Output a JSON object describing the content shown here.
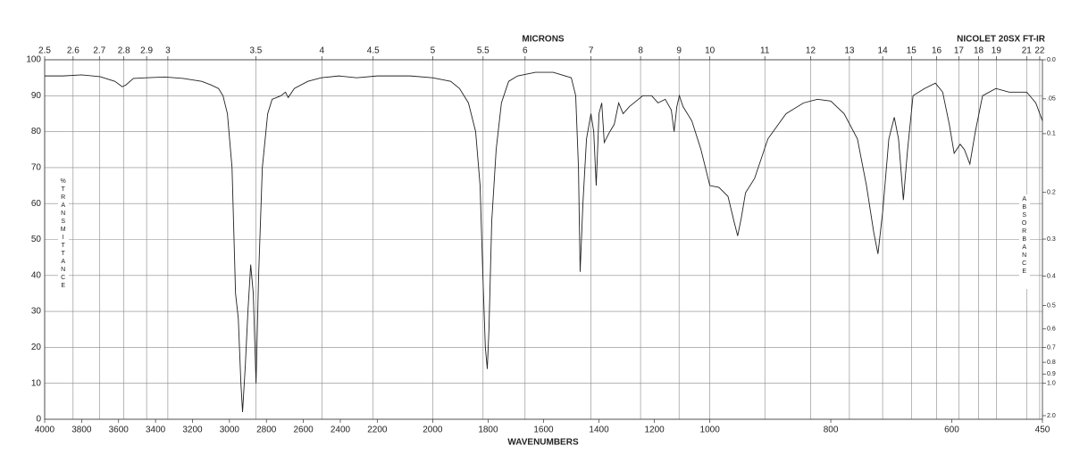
{
  "chart_data": {
    "type": "line",
    "title": "NICOLET 20SX FT-IR",
    "x2label": "MICRONS",
    "xlabel": "WAVENUMBERS",
    "ylabel": "%TRANSMITTANCE",
    "y2label": "ABSORBANCE",
    "color": "#222222",
    "xlim": [
      4000,
      450
    ],
    "x_scale_breaks": [
      2200,
      1000
    ],
    "xticks": [
      4000,
      3800,
      3600,
      3400,
      3200,
      3000,
      2800,
      2600,
      2400,
      2200,
      2000,
      1800,
      1600,
      1400,
      1200,
      1000,
      800,
      600,
      450
    ],
    "x2ticks": [
      2.5,
      2.6,
      2.7,
      2.8,
      2.9,
      3,
      3.5,
      4,
      4.5,
      5,
      5.5,
      6,
      7,
      8,
      9,
      10,
      11,
      12,
      13,
      14,
      15,
      16,
      17,
      18,
      19,
      21,
      22
    ],
    "ylim": [
      0,
      100
    ],
    "yticks": [
      0,
      10,
      20,
      30,
      40,
      50,
      60,
      70,
      80,
      90,
      100
    ],
    "y2scale": "absorbance",
    "y2ticks": [
      {
        "value": 0,
        "label": "0.0"
      },
      {
        "value": 0.05,
        "label": ".05"
      },
      0.1,
      0.2,
      0.3,
      0.4,
      0.5,
      0.6,
      0.7,
      0.8,
      0.9,
      {
        "value": 1,
        "label": "1.0"
      },
      {
        "value": 2,
        "label": "2.0"
      }
    ],
    "grid": true,
    "x": [
      4000,
      3900,
      3800,
      3700,
      3620,
      3580,
      3560,
      3520,
      3450,
      3350,
      3250,
      3150,
      3100,
      3059,
      3035,
      3011,
      2986,
      2967,
      2952,
      2938,
      2929,
      2914,
      2900,
      2885,
      2871,
      2856,
      2842,
      2822,
      2793,
      2769,
      2721,
      2697,
      2682,
      2649,
      2576,
      2504,
      2407,
      2311,
      2200,
      2081,
      2000,
      1935,
      1903,
      1871,
      1845,
      1829,
      1819,
      1810,
      1803,
      1797,
      1787,
      1771,
      1752,
      1726,
      1694,
      1629,
      1565,
      1500,
      1484,
      1474,
      1468,
      1458,
      1445,
      1429,
      1419,
      1410,
      1400,
      1390,
      1381,
      1361,
      1345,
      1329,
      1313,
      1290,
      1242,
      1210,
      1187,
      1161,
      1139,
      1129,
      1119,
      1110,
      1097,
      1065,
      1032,
      1000,
      985,
      970,
      960,
      954,
      948,
      941,
      926,
      904,
      874,
      845,
      822,
      800,
      778,
      756,
      741,
      729,
      722,
      714,
      704,
      695,
      688,
      680,
      673,
      664,
      645,
      627,
      615,
      604,
      596,
      586,
      579,
      570,
      561,
      549,
      527,
      505,
      476,
      461,
      450
    ],
    "values": [
      95.5,
      95.5,
      95.8,
      95.3,
      94,
      92.5,
      93,
      94.8,
      95,
      95.2,
      94.8,
      94,
      93,
      92,
      90,
      85,
      70,
      35,
      28,
      10,
      2,
      15,
      30,
      43,
      35,
      10,
      40,
      70,
      85,
      89,
      90,
      91,
      89.5,
      92,
      94,
      95,
      95.5,
      95,
      95.5,
      95.5,
      95,
      94,
      92,
      88,
      80,
      65,
      40,
      20,
      14,
      25,
      55,
      75,
      88,
      94,
      95.5,
      96.5,
      96.5,
      95,
      90,
      70,
      41,
      60,
      78,
      85,
      80,
      65,
      85,
      88,
      77,
      80,
      82,
      88,
      85,
      87,
      90,
      90,
      88,
      89,
      86,
      80,
      87,
      90,
      87,
      83,
      75,
      65,
      64.5,
      62,
      55,
      51,
      56,
      63,
      67,
      78,
      85,
      88,
      89,
      88.5,
      85,
      78,
      65,
      52,
      46,
      58,
      78,
      84,
      78,
      61,
      75,
      90,
      92,
      93.5,
      91,
      82,
      74,
      76.5,
      75,
      71,
      80,
      90,
      92,
      91,
      91,
      88,
      83
    ]
  }
}
